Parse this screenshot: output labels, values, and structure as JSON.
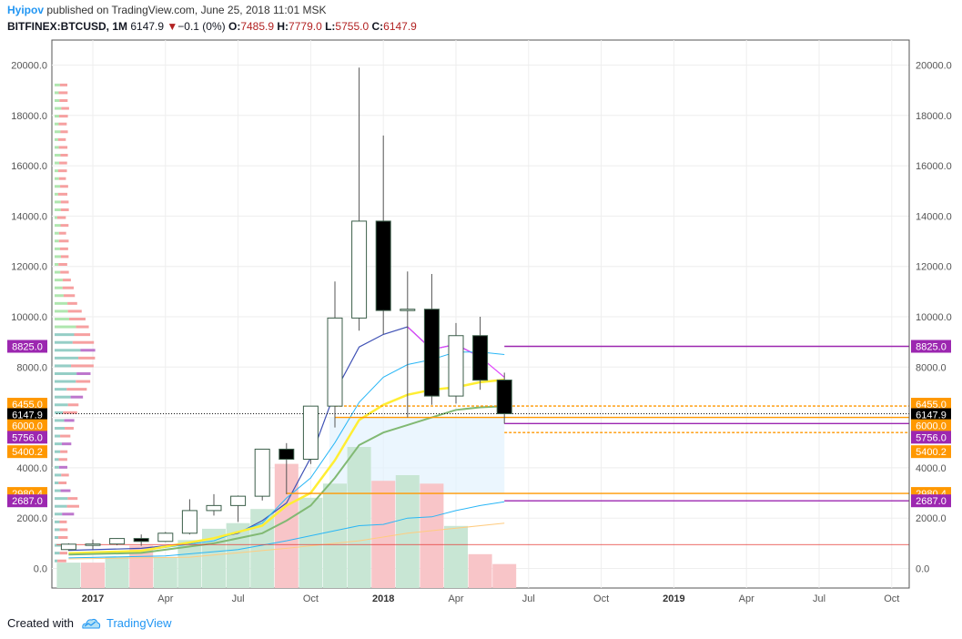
{
  "header": {
    "user": "Hyipov",
    "published_text": "published on TradingView.com, June 25, 2018 11:01 MSK",
    "symbol": "BITFINEX:BTCUSD, 1M",
    "price": "6147.9",
    "change_arrow": "▼",
    "change": "−0.1 (0%)",
    "o_label": "O:",
    "o_value": "7485.9",
    "h_label": "H:",
    "h_value": "7779.0",
    "l_label": "L:",
    "l_value": "5755.0",
    "c_label": "C:",
    "c_value": "6147.9"
  },
  "footer": {
    "created_with": "Created with",
    "brand": "TradingView"
  },
  "colors": {
    "up_fill": "#ffffff",
    "down_fill": "#000000",
    "candle_border": "#3b5e49",
    "vol_up": "#c8e6d4",
    "vol_down": "#f8c5c8",
    "purple": "#9c27b0",
    "orange": "#ff9800",
    "black": "#000000",
    "ma_blue": "#3f51b5",
    "ma_cyan": "#29b6f6",
    "ma_yellow": "#ffee33",
    "ma_green": "#81b973"
  },
  "chart_data": {
    "type": "candlestick",
    "title": "BITFINEX:BTCUSD, 1M",
    "y_ticks": [
      "0.0",
      "2000.0",
      "4000.0",
      "6000.0",
      "8000.0",
      "10000.0",
      "12000.0",
      "14000.0",
      "16000.0",
      "18000.0",
      "20000.0"
    ],
    "y_tick_values": [
      0,
      2000,
      4000,
      6000,
      8000,
      10000,
      12000,
      14000,
      16000,
      18000,
      20000
    ],
    "ylim": [
      -700,
      21000
    ],
    "x_ticks": [
      {
        "label": "2017",
        "m": 0,
        "bold": true
      },
      {
        "label": "Apr",
        "m": 3,
        "bold": false
      },
      {
        "label": "Jul",
        "m": 6,
        "bold": false
      },
      {
        "label": "Oct",
        "m": 9,
        "bold": false
      },
      {
        "label": "2018",
        "m": 12,
        "bold": true
      },
      {
        "label": "Apr",
        "m": 15,
        "bold": false
      },
      {
        "label": "Jul",
        "m": 18,
        "bold": false
      },
      {
        "label": "Oct",
        "m": 21,
        "bold": false
      },
      {
        "label": "2019",
        "m": 24,
        "bold": true
      },
      {
        "label": "Apr",
        "m": 27,
        "bold": false
      },
      {
        "label": "Jul",
        "m": 30,
        "bold": false
      },
      {
        "label": "Oct",
        "m": 33,
        "bold": false
      }
    ],
    "candles": [
      {
        "m": -1,
        "o": 750,
        "h": 1000,
        "l": 700,
        "c": 965
      },
      {
        "m": 0,
        "o": 965,
        "h": 1150,
        "l": 750,
        "c": 970
      },
      {
        "m": 1,
        "o": 970,
        "h": 1200,
        "l": 920,
        "c": 1190
      },
      {
        "m": 2,
        "o": 1190,
        "h": 1350,
        "l": 900,
        "c": 1075
      },
      {
        "m": 3,
        "o": 1075,
        "h": 1450,
        "l": 1050,
        "c": 1400
      },
      {
        "m": 4,
        "o": 1400,
        "h": 2750,
        "l": 1350,
        "c": 2300
      },
      {
        "m": 5,
        "o": 2300,
        "h": 2950,
        "l": 2100,
        "c": 2500
      },
      {
        "m": 6,
        "o": 2500,
        "h": 2900,
        "l": 1850,
        "c": 2870
      },
      {
        "m": 7,
        "o": 2870,
        "h": 4750,
        "l": 2700,
        "c": 4740
      },
      {
        "m": 8,
        "o": 4740,
        "h": 4980,
        "l": 2950,
        "c": 4340
      },
      {
        "m": 9,
        "o": 4340,
        "h": 6450,
        "l": 4150,
        "c": 6450
      },
      {
        "m": 10,
        "o": 6450,
        "h": 11400,
        "l": 5600,
        "c": 9950
      },
      {
        "m": 11,
        "o": 9950,
        "h": 19900,
        "l": 9450,
        "c": 13800
      },
      {
        "m": 12,
        "o": 13800,
        "h": 17200,
        "l": 9300,
        "c": 10250
      },
      {
        "m": 13,
        "o": 10250,
        "h": 11800,
        "l": 6000,
        "c": 10300
      },
      {
        "m": 14,
        "o": 10300,
        "h": 11700,
        "l": 6500,
        "c": 6850
      },
      {
        "m": 15,
        "o": 6850,
        "h": 9750,
        "l": 6550,
        "c": 9250
      },
      {
        "m": 16,
        "o": 9250,
        "h": 10000,
        "l": 7100,
        "c": 7480
      },
      {
        "m": 17,
        "o": 7485.9,
        "h": 7779.0,
        "l": 5755.0,
        "c": 6147.9
      }
    ],
    "volume": [
      {
        "m": -1,
        "v": 0.18,
        "up": true
      },
      {
        "m": 0,
        "v": 0.18,
        "up": false
      },
      {
        "m": 1,
        "v": 0.22,
        "up": true
      },
      {
        "m": 2,
        "v": 0.3,
        "up": false
      },
      {
        "m": 3,
        "v": 0.22,
        "up": true
      },
      {
        "m": 4,
        "v": 0.34,
        "up": true
      },
      {
        "m": 5,
        "v": 0.42,
        "up": true
      },
      {
        "m": 6,
        "v": 0.46,
        "up": true
      },
      {
        "m": 7,
        "v": 0.56,
        "up": true
      },
      {
        "m": 8,
        "v": 0.88,
        "up": false
      },
      {
        "m": 9,
        "v": 0.64,
        "up": true
      },
      {
        "m": 10,
        "v": 0.74,
        "up": true
      },
      {
        "m": 11,
        "v": 1.0,
        "up": true
      },
      {
        "m": 12,
        "v": 0.76,
        "up": false
      },
      {
        "m": 13,
        "v": 0.8,
        "up": true
      },
      {
        "m": 14,
        "v": 0.74,
        "up": false
      },
      {
        "m": 15,
        "v": 0.44,
        "up": true
      },
      {
        "m": 16,
        "v": 0.24,
        "up": false
      },
      {
        "m": 17,
        "v": 0.17,
        "up": false
      }
    ],
    "moving_averages": [
      {
        "name": "ma-blue",
        "color": "#3f51b5",
        "width": 1.2,
        "points": [
          [
            -1,
            720
          ],
          [
            2,
            800
          ],
          [
            4,
            1000
          ],
          [
            6,
            1400
          ],
          [
            7,
            1900
          ],
          [
            8,
            2600
          ],
          [
            9,
            4400
          ],
          [
            10,
            7000
          ],
          [
            11,
            8800
          ],
          [
            12,
            9300
          ],
          [
            13,
            9600
          ],
          [
            14,
            8700
          ],
          [
            15,
            8900
          ],
          [
            16,
            8400
          ]
        ]
      },
      {
        "name": "ma-magenta",
        "color": "#e040fb",
        "width": 1.2,
        "points": [
          [
            13,
            9600
          ],
          [
            14,
            8700
          ],
          [
            15,
            8900
          ],
          [
            16,
            8400
          ],
          [
            17,
            7600
          ]
        ]
      },
      {
        "name": "ma-cyan",
        "color": "#29b6f6",
        "width": 1,
        "points": [
          [
            -1,
            600
          ],
          [
            2,
            700
          ],
          [
            5,
            1100
          ],
          [
            7,
            1800
          ],
          [
            8,
            2800
          ],
          [
            9,
            3600
          ],
          [
            10,
            5000
          ],
          [
            11,
            6600
          ],
          [
            12,
            7600
          ],
          [
            13,
            8100
          ],
          [
            14,
            8300
          ],
          [
            15,
            8600
          ],
          [
            16,
            8600
          ],
          [
            17,
            8500
          ]
        ]
      },
      {
        "name": "ma-yellow",
        "color": "#ffee33",
        "width": 2.5,
        "points": [
          [
            -1,
            600
          ],
          [
            2,
            700
          ],
          [
            5,
            1200
          ],
          [
            7,
            1700
          ],
          [
            8,
            2500
          ],
          [
            9,
            3000
          ],
          [
            10,
            4300
          ],
          [
            11,
            5900
          ],
          [
            12,
            6500
          ],
          [
            13,
            6900
          ],
          [
            14,
            7100
          ],
          [
            15,
            7200
          ],
          [
            16,
            7400
          ],
          [
            17,
            7500
          ]
        ]
      },
      {
        "name": "ma-green",
        "color": "#81b973",
        "width": 2,
        "points": [
          [
            -1,
            550
          ],
          [
            2,
            620
          ],
          [
            5,
            1000
          ],
          [
            7,
            1400
          ],
          [
            8,
            1900
          ],
          [
            9,
            2500
          ],
          [
            10,
            3600
          ],
          [
            11,
            4900
          ],
          [
            12,
            5400
          ],
          [
            13,
            5700
          ],
          [
            14,
            6000
          ],
          [
            15,
            6300
          ],
          [
            16,
            6400
          ],
          [
            17,
            6450
          ]
        ]
      },
      {
        "name": "ma-cyan-slow",
        "color": "#29b6f6",
        "width": 1,
        "points": [
          [
            -1,
            420
          ],
          [
            3,
            500
          ],
          [
            6,
            750
          ],
          [
            8,
            1100
          ],
          [
            10,
            1500
          ],
          [
            11,
            1700
          ],
          [
            12,
            1750
          ],
          [
            13,
            2000
          ],
          [
            14,
            2050
          ],
          [
            15,
            2300
          ],
          [
            16,
            2500
          ],
          [
            17,
            2650
          ]
        ]
      },
      {
        "name": "ma-orange-slow",
        "color": "#ffcc80",
        "width": 1,
        "points": [
          [
            -1,
            380
          ],
          [
            4,
            450
          ],
          [
            8,
            800
          ],
          [
            11,
            1100
          ],
          [
            13,
            1400
          ],
          [
            15,
            1600
          ],
          [
            17,
            1800
          ]
        ]
      }
    ],
    "horizontal_levels": [
      {
        "value": 8825.0,
        "label": "8825.0",
        "color": "#9c27b0",
        "style": "solid",
        "from_m": 17.0
      },
      {
        "value": 6455.0,
        "label": "6455.0",
        "color": "#ff9800",
        "style": "dashed",
        "from_m": 10.0
      },
      {
        "value": 6147.9,
        "label": "6147.9",
        "color": "#000000",
        "style": "dotted",
        "from_m": -1.5
      },
      {
        "value": 6000.0,
        "label": "6000.0",
        "color": "#ff9800",
        "style": "solid",
        "from_m": 10.0
      },
      {
        "value": 5756.0,
        "label": "5756.0",
        "color": "#9c27b0",
        "style": "solid",
        "from_m": 17.0
      },
      {
        "value": 5400.2,
        "label": "5400.2",
        "color": "#ff9800",
        "style": "dashed",
        "from_m": 17.0
      },
      {
        "value": 2980.4,
        "label": "2980.4",
        "color": "#ff9800",
        "style": "solid",
        "from_m": 8.0
      },
      {
        "value": 2687.0,
        "label": "2687.0",
        "color": "#9c27b0",
        "style": "solid",
        "from_m": 17.0
      },
      {
        "value": 950,
        "label": "",
        "color": "#e53935",
        "style": "thin",
        "from_m": -1.5
      }
    ],
    "volume_profile_note": "horizontal volume-by-price histogram on left edge",
    "grid": true
  }
}
